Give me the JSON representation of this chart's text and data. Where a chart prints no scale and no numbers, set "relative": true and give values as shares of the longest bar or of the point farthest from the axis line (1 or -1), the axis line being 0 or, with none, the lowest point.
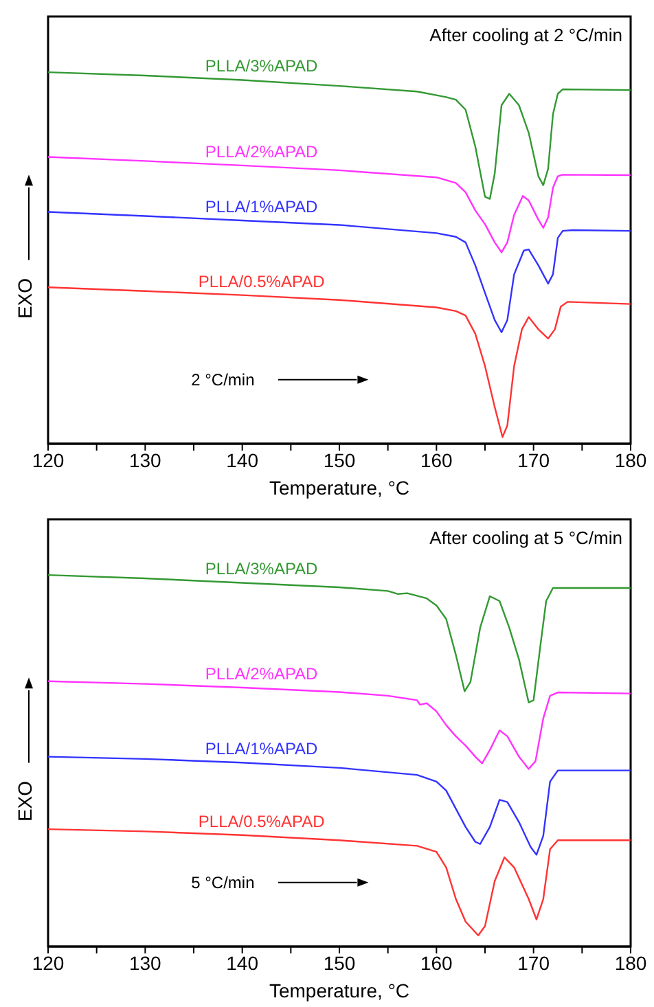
{
  "chart_data": [
    {
      "type": "line",
      "relative": true,
      "xlabel": "Temperature, °C",
      "ylabel": "EXO",
      "xlim": [
        120,
        180
      ],
      "xticks": [
        120,
        {
          "value": 125,
          "label": null
        },
        130,
        {
          "value": 135,
          "label": null
        },
        140,
        {
          "value": 145,
          "label": null
        },
        150,
        {
          "value": 155,
          "label": null
        },
        160,
        {
          "value": 165,
          "label": null
        },
        170,
        {
          "value": 175,
          "label": null
        },
        180
      ],
      "annotations": [
        "After cooling at 2 °C/min",
        "2 °C/min"
      ],
      "marker": "none",
      "series": [
        {
          "name": "PLLA/3%APAD",
          "color": "#339933",
          "x": [
            120,
            130,
            140,
            150,
            158,
            160,
            161,
            162,
            163,
            164,
            165,
            165.5,
            166,
            166.7,
            167.5,
            168.5,
            169.5,
            170.5,
            171,
            171.5,
            172,
            172.5,
            173,
            180
          ],
          "values": [
            1.0,
            0.991,
            0.979,
            0.963,
            0.948,
            0.938,
            0.933,
            0.926,
            0.899,
            0.8,
            0.665,
            0.659,
            0.727,
            0.911,
            0.942,
            0.911,
            0.837,
            0.72,
            0.696,
            0.74,
            0.887,
            0.942,
            0.954,
            0.952
          ]
        },
        {
          "name": "PLLA/2%APAD",
          "color": "#ff33ff",
          "x": [
            120,
            130,
            140,
            150,
            160,
            162,
            163,
            164,
            165,
            166,
            166.7,
            167.3,
            168,
            168.9,
            169.5,
            170.5,
            171,
            171.5,
            172,
            172.5,
            173,
            180
          ],
          "values": [
            0.772,
            0.761,
            0.749,
            0.736,
            0.717,
            0.702,
            0.677,
            0.628,
            0.591,
            0.542,
            0.515,
            0.542,
            0.616,
            0.667,
            0.655,
            0.603,
            0.581,
            0.609,
            0.689,
            0.72,
            0.724,
            0.723
          ]
        },
        {
          "name": "PLLA/1%APAD",
          "color": "#3333ff",
          "x": [
            120,
            130,
            140,
            150,
            160,
            162,
            163,
            164,
            165,
            166,
            166.7,
            167.3,
            168,
            169,
            169.5,
            170.5,
            171.5,
            172,
            172.5,
            173,
            174,
            180
          ],
          "values": [
            0.624,
            0.613,
            0.601,
            0.589,
            0.567,
            0.557,
            0.542,
            0.48,
            0.406,
            0.333,
            0.3,
            0.333,
            0.456,
            0.52,
            0.523,
            0.48,
            0.431,
            0.456,
            0.554,
            0.573,
            0.575,
            0.573
          ]
        },
        {
          "name": "PLLA/0.5%APAD",
          "color": "#ff3333",
          "x": [
            120,
            130,
            140,
            150,
            160,
            162,
            163,
            164,
            165,
            166,
            166.8,
            167.3,
            168,
            168.8,
            169.5,
            170.5,
            171.5,
            172.2,
            172.8,
            173.5,
            180
          ],
          "values": [
            0.421,
            0.411,
            0.4,
            0.387,
            0.367,
            0.357,
            0.345,
            0.296,
            0.209,
            0.099,
            0.018,
            0.049,
            0.209,
            0.308,
            0.341,
            0.308,
            0.283,
            0.308,
            0.369,
            0.382,
            0.376
          ]
        }
      ]
    },
    {
      "type": "line",
      "relative": true,
      "xlabel": "Temperature, °C",
      "ylabel": "EXO",
      "xlim": [
        120,
        180
      ],
      "xticks": [
        120,
        {
          "value": 125,
          "label": null
        },
        130,
        {
          "value": 135,
          "label": null
        },
        140,
        {
          "value": 145,
          "label": null
        },
        150,
        {
          "value": 155,
          "label": null
        },
        160,
        {
          "value": 165,
          "label": null
        },
        170,
        {
          "value": 175,
          "label": null
        },
        180
      ],
      "annotations": [
        "After cooling at 5 °C/min",
        "5 °C/min"
      ],
      "marker": "none",
      "series": [
        {
          "name": "PLLA/3%APAD",
          "color": "#339933",
          "x": [
            120,
            130,
            140,
            150,
            155,
            156,
            157,
            159,
            160,
            161,
            162,
            162.9,
            163.5,
            164.5,
            165.5,
            166.5,
            167.5,
            168.5,
            169.5,
            170,
            170.7,
            171.3,
            172,
            180
          ],
          "values": [
            1.0,
            0.991,
            0.979,
            0.967,
            0.957,
            0.949,
            0.951,
            0.937,
            0.918,
            0.882,
            0.785,
            0.687,
            0.712,
            0.858,
            0.943,
            0.93,
            0.858,
            0.773,
            0.657,
            0.663,
            0.809,
            0.93,
            0.965,
            0.965
          ]
        },
        {
          "name": "PLLA/2%APAD",
          "color": "#ff33ff",
          "x": [
            120,
            130,
            140,
            150,
            155,
            158,
            158.3,
            159,
            160,
            161,
            162,
            163,
            164,
            164.7,
            165.5,
            166.5,
            167.3,
            168.5,
            169.5,
            170.2,
            171,
            171.7,
            172.5,
            180
          ],
          "values": [
            0.714,
            0.707,
            0.697,
            0.685,
            0.675,
            0.663,
            0.651,
            0.655,
            0.633,
            0.596,
            0.566,
            0.541,
            0.511,
            0.493,
            0.529,
            0.582,
            0.566,
            0.511,
            0.478,
            0.499,
            0.614,
            0.675,
            0.684,
            0.681
          ]
        },
        {
          "name": "PLLA/1%APAD",
          "color": "#3333ff",
          "x": [
            120,
            130,
            140,
            150,
            158,
            160,
            161,
            162,
            163,
            164,
            164.5,
            165.5,
            166.5,
            167.3,
            168.5,
            169.7,
            170.3,
            171,
            171.7,
            172.5,
            180
          ],
          "values": [
            0.511,
            0.505,
            0.495,
            0.481,
            0.462,
            0.444,
            0.42,
            0.371,
            0.322,
            0.282,
            0.276,
            0.322,
            0.395,
            0.389,
            0.335,
            0.268,
            0.247,
            0.298,
            0.444,
            0.474,
            0.474
          ]
        },
        {
          "name": "PLLA/0.5%APAD",
          "color": "#ff3333",
          "x": [
            120,
            130,
            140,
            150,
            158,
            160,
            161,
            162,
            163,
            164.3,
            165,
            166,
            167,
            168,
            169.5,
            170.3,
            171,
            171.7,
            172.5,
            180
          ],
          "values": [
            0.316,
            0.31,
            0.3,
            0.286,
            0.271,
            0.255,
            0.213,
            0.128,
            0.067,
            0.03,
            0.055,
            0.176,
            0.24,
            0.213,
            0.128,
            0.073,
            0.128,
            0.262,
            0.286,
            0.286
          ]
        }
      ]
    }
  ]
}
